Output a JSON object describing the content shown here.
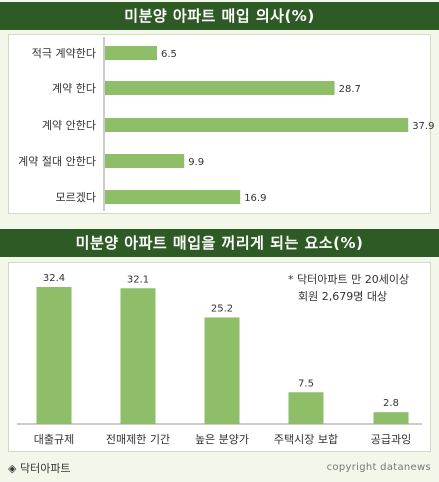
{
  "chart_data": [
    {
      "type": "bar",
      "orientation": "horizontal",
      "title": "미분양 아파트 매입 의사(%)",
      "categories": [
        "적극 계약한다",
        "계약 한다",
        "계약 안한다",
        "계약 절대 안한다",
        "모르겠다"
      ],
      "values": [
        6.5,
        28.7,
        37.9,
        9.9,
        16.9
      ],
      "xlim": [
        0,
        40
      ],
      "bar_color": "#8fbe68",
      "grid": false
    },
    {
      "type": "bar",
      "orientation": "vertical",
      "title": "미분양 아파트 매입을 꺼리게 되는 요소(%)",
      "categories": [
        "대출규제",
        "전매제한 기간",
        "높은 분양가",
        "주택시장 보합",
        "공급과잉"
      ],
      "values": [
        32.4,
        32.1,
        25.2,
        7.5,
        2.8
      ],
      "ylim": [
        0,
        35
      ],
      "bar_color": "#8fbe68",
      "grid": false,
      "annotation": [
        "* 닥터아파트 만 20세이상",
        "회원 2,679명 대상"
      ]
    }
  ],
  "footer": {
    "source": "◈ 닥터아파트",
    "copyright": "copyright datanews"
  },
  "colors": {
    "header_band": "#2e5a25",
    "bar": "#8fbe68",
    "background": "#f2f7ea"
  }
}
